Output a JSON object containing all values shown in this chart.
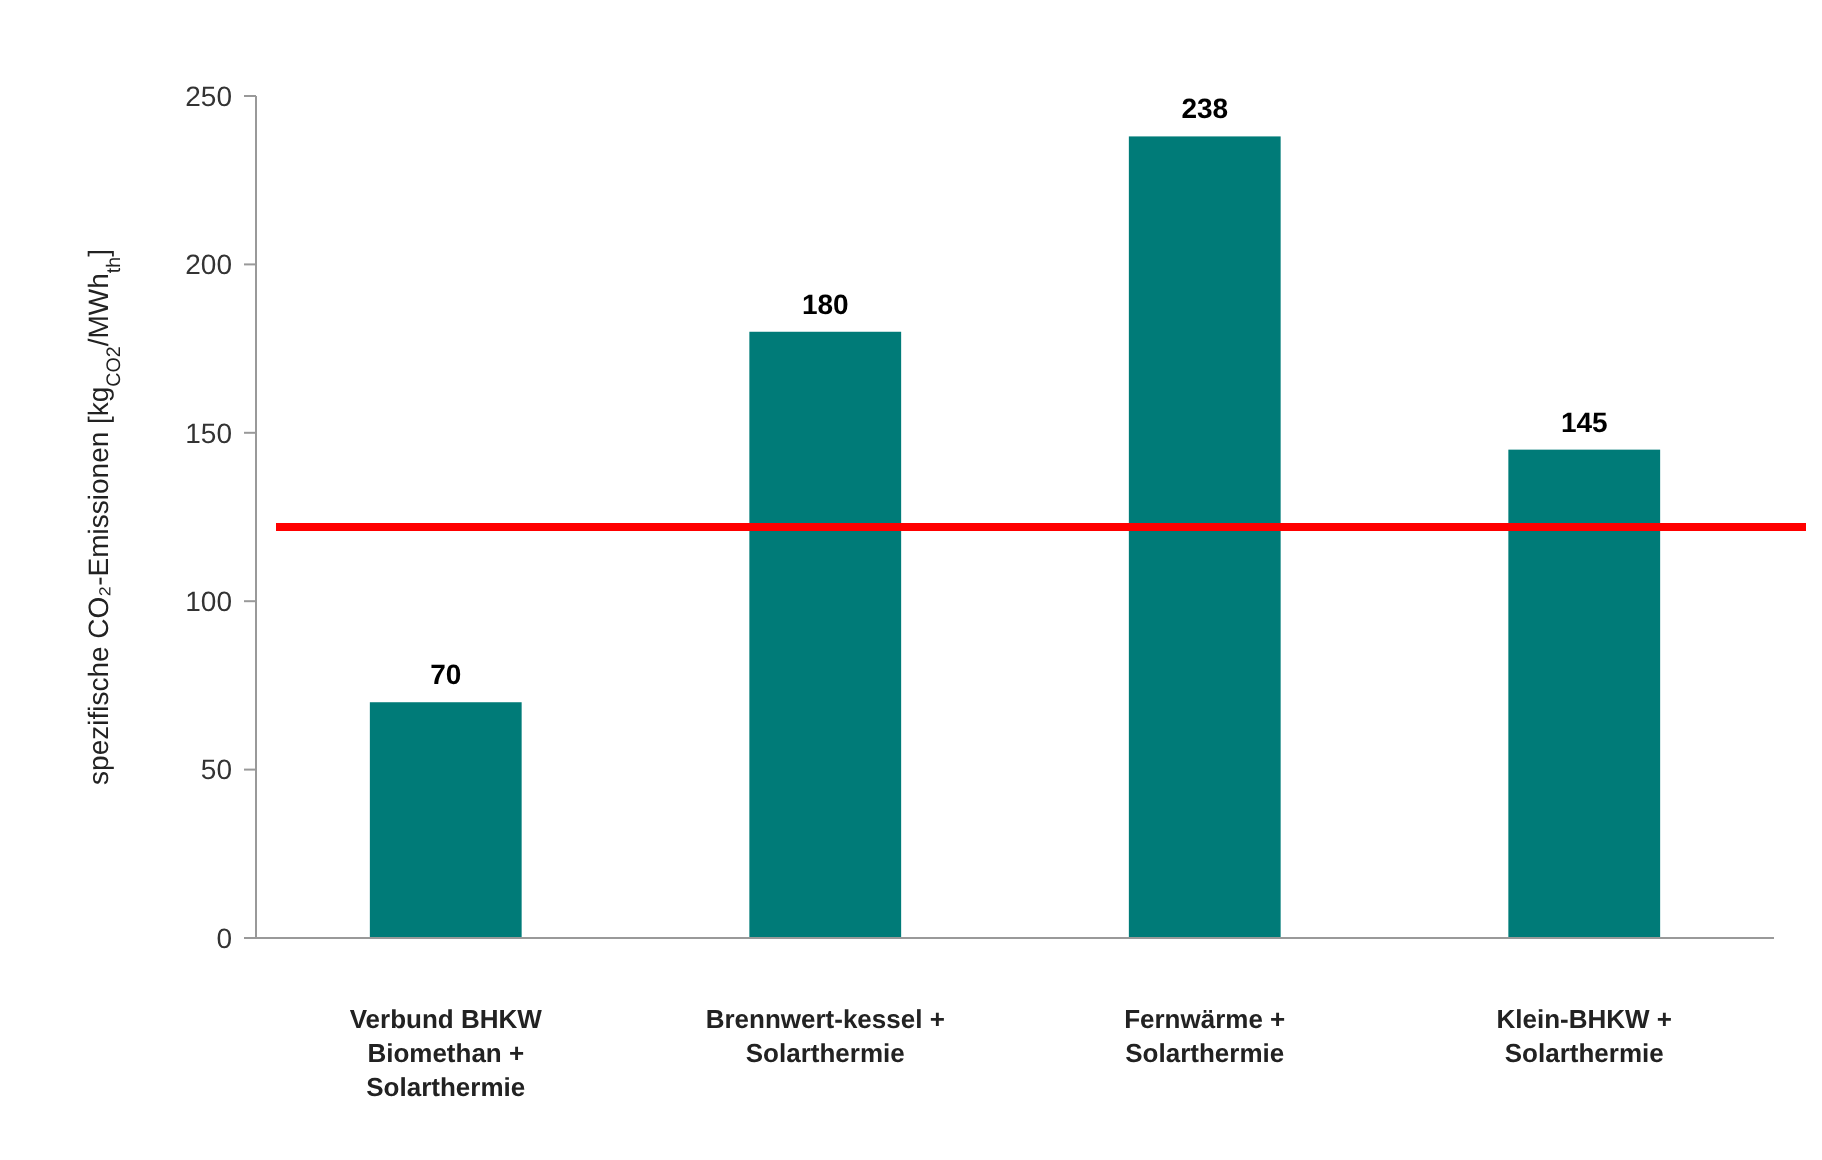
{
  "chart_data": {
    "type": "bar",
    "ylabel": "spezifische CO₂-Emissionen [kg$_{CO2}$/MWh$_{th}$]",
    "categories": [
      "Verbund BHKW Biomethan + Solarthermie",
      "Brennwert-kessel + Solarthermie",
      "Fernwärme + Solarthermie",
      "Klein-BHKW + Solarthermie"
    ],
    "values": [
      70,
      180,
      238,
      145
    ],
    "color": "#007b78",
    "data_labels": true,
    "ylim": [
      0,
      250
    ],
    "yticks": [
      0,
      50,
      100,
      150,
      200,
      250
    ],
    "grid": false,
    "ref_lines": [
      {
        "axis": "y",
        "value": 122,
        "color": "#ff0000"
      }
    ]
  }
}
